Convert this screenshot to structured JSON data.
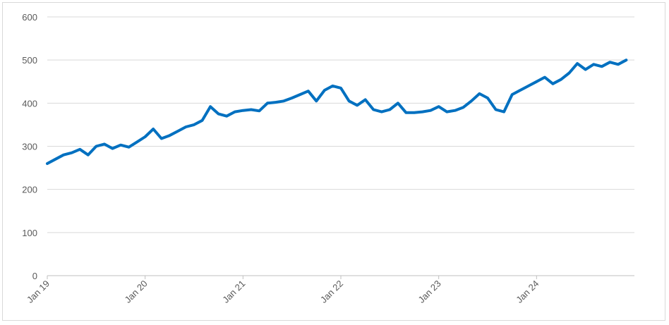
{
  "chart_data": {
    "type": "line",
    "x_ticks": [
      "Jan 19",
      "Jan 20",
      "Jan 21",
      "Jan 22",
      "Jan 23",
      "Jan 24"
    ],
    "y_ticks": [
      "0",
      "100",
      "200",
      "300",
      "400",
      "500",
      "600"
    ],
    "ylim": [
      0,
      600
    ],
    "xlim": [
      "2019-01",
      "2025-01"
    ],
    "grid": "horizontal",
    "title": "",
    "xlabel": "",
    "ylabel": "",
    "series": [
      {
        "color": "#0070c0",
        "x": [
          "2019-01",
          "2019-02",
          "2019-03",
          "2019-04",
          "2019-05",
          "2019-06",
          "2019-07",
          "2019-08",
          "2019-09",
          "2019-10",
          "2019-11",
          "2019-12",
          "2020-01",
          "2020-02",
          "2020-03",
          "2020-04",
          "2020-05",
          "2020-06",
          "2020-07",
          "2020-08",
          "2020-09",
          "2020-10",
          "2020-11",
          "2020-12",
          "2021-01",
          "2021-02",
          "2021-03",
          "2021-04",
          "2021-05",
          "2021-06",
          "2021-07",
          "2021-08",
          "2021-09",
          "2021-10",
          "2021-11",
          "2021-12",
          "2022-01",
          "2022-02",
          "2022-03",
          "2022-04",
          "2022-05",
          "2022-06",
          "2022-07",
          "2022-08",
          "2022-09",
          "2022-10",
          "2022-11",
          "2022-12",
          "2023-01",
          "2023-02",
          "2023-03",
          "2023-04",
          "2023-05",
          "2023-06",
          "2023-07",
          "2023-08",
          "2023-09",
          "2023-10",
          "2023-11",
          "2023-12",
          "2024-01",
          "2024-02",
          "2024-03",
          "2024-04",
          "2024-05",
          "2024-06",
          "2024-07",
          "2024-08",
          "2024-09",
          "2024-10",
          "2024-11",
          "2024-12"
        ],
        "y": [
          260,
          270,
          280,
          285,
          293,
          280,
          300,
          305,
          295,
          303,
          298,
          310,
          322,
          340,
          318,
          325,
          335,
          345,
          350,
          360,
          392,
          375,
          370,
          380,
          383,
          385,
          382,
          400,
          402,
          405,
          412,
          420,
          428,
          405,
          430,
          440,
          435,
          405,
          395,
          408,
          385,
          380,
          385,
          400,
          378,
          378,
          380,
          383,
          392,
          380,
          383,
          390,
          405,
          422,
          412,
          385,
          380,
          420,
          430,
          440,
          450,
          460,
          445,
          455,
          470,
          492,
          478,
          490,
          485,
          495,
          490,
          500
        ]
      }
    ]
  }
}
